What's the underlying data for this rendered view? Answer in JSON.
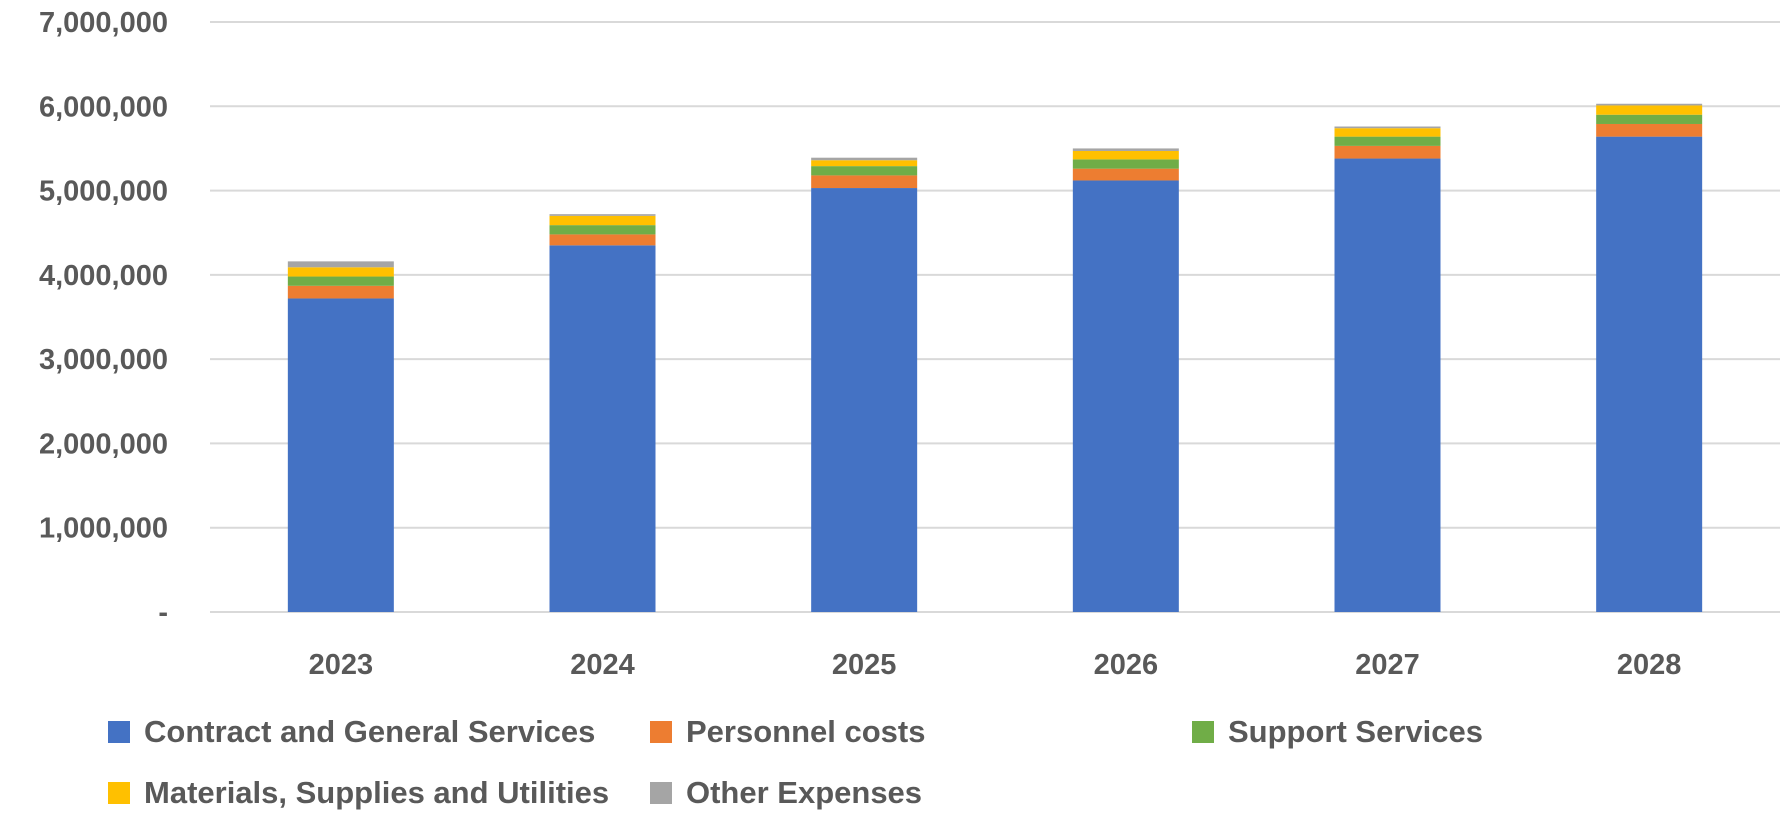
{
  "chart_data": {
    "type": "bar",
    "stacked": true,
    "title": "",
    "xlabel": "",
    "ylabel": "",
    "categories": [
      "2023",
      "2024",
      "2025",
      "2026",
      "2027",
      "2028"
    ],
    "ylim": [
      0,
      7000000
    ],
    "y_ticks": [
      0,
      1000000,
      2000000,
      3000000,
      4000000,
      5000000,
      6000000,
      7000000
    ],
    "y_tick_labels": [
      "-",
      "1,000,000",
      "2,000,000",
      "3,000,000",
      "4,000,000",
      "5,000,000",
      "6,000,000",
      "7,000,000"
    ],
    "grid": true,
    "legend_position": "bottom",
    "series": [
      {
        "name": "Contract and General Services",
        "color": "#4472C4",
        "values": [
          3720000,
          4350000,
          5030000,
          5120000,
          5380000,
          5640000
        ]
      },
      {
        "name": "Personnel costs",
        "color": "#ED7D31",
        "values": [
          150000,
          130000,
          150000,
          140000,
          150000,
          150000
        ]
      },
      {
        "name": "Support Services",
        "color": "#70AD47",
        "values": [
          110000,
          110000,
          110000,
          110000,
          110000,
          110000
        ]
      },
      {
        "name": "Materials, Supplies and Utilities",
        "color": "#FFC000",
        "values": [
          110000,
          110000,
          70000,
          100000,
          100000,
          110000
        ]
      },
      {
        "name": "Other Expenses",
        "color": "#A5A5A5",
        "values": [
          70000,
          20000,
          30000,
          30000,
          20000,
          20000
        ]
      }
    ]
  }
}
